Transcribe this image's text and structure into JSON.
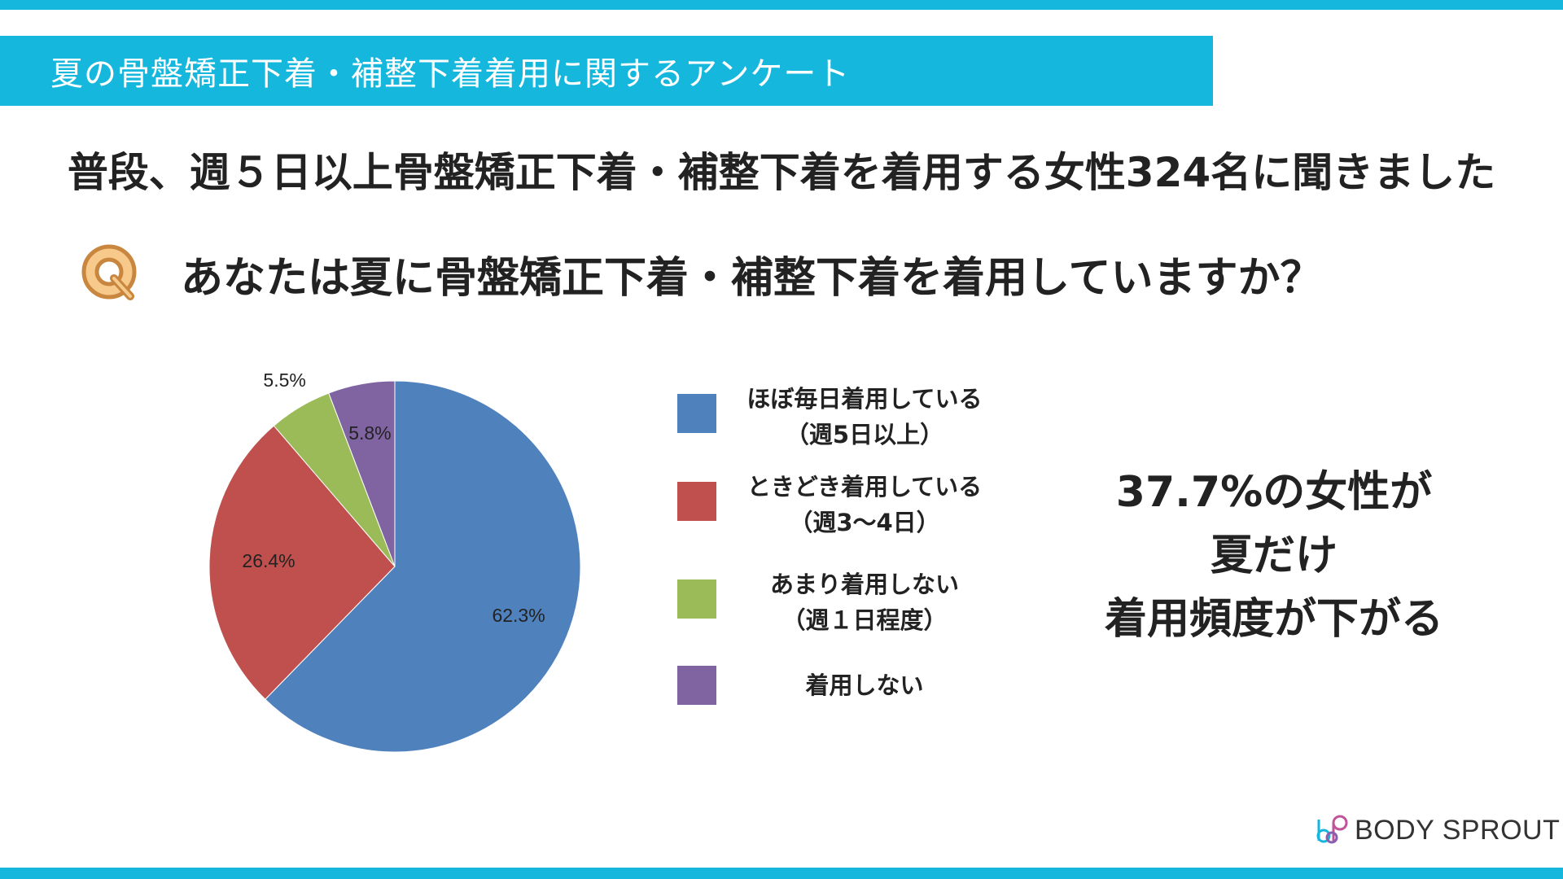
{
  "header": {
    "title": "夏の骨盤矯正下着・補整下着着用に関するアンケート"
  },
  "subtitle": "普段、週５日以上骨盤矯正下着・補整下着を着用する女性324名に聞きました",
  "question": {
    "icon": "q-badge-icon",
    "text": "あなたは夏に骨盤矯正下着・補整下着を着用していますか？"
  },
  "legend": [
    {
      "line1": "ほぼ毎日着用している",
      "line2": "（週5日以上）",
      "color": "#4f81bd"
    },
    {
      "line1": "ときどき着用している",
      "line2": "（週3〜4日）",
      "color": "#c0504d"
    },
    {
      "line1": "あまり着用しない",
      "line2": "（週１日程度）",
      "color": "#9bbb59"
    },
    {
      "line1": "着用しない",
      "line2": "",
      "color": "#8064a2"
    }
  ],
  "callout": {
    "line1": "37.7%の女性が",
    "line2": "夏だけ",
    "line3": "着用頻度が下がる"
  },
  "brand": {
    "name": "BODY SPROUT",
    "logo_icon": "body-sprout-logo-icon"
  },
  "chart_data": {
    "type": "pie",
    "categories": [
      "ほぼ毎日着用している（週5日以上）",
      "ときどき着用している（週3〜4日）",
      "あまり着用しない（週１日程度）",
      "着用しない"
    ],
    "values": [
      62.3,
      26.4,
      5.5,
      5.8
    ],
    "labels": [
      "62.3%",
      "26.4%",
      "5.5%",
      "5.8%"
    ],
    "colors": [
      "#4f81bd",
      "#c0504d",
      "#9bbb59",
      "#8064a2"
    ],
    "direction": "clockwise-from-top",
    "legend_position": "right"
  }
}
